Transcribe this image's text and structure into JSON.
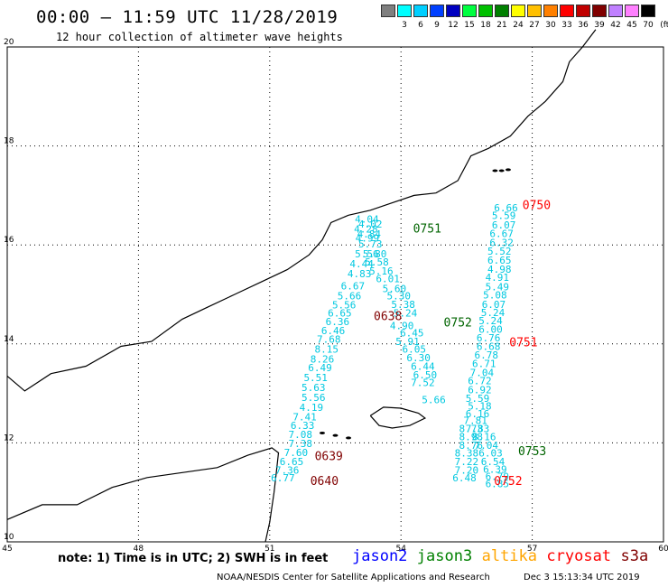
{
  "header": {
    "title": "00:00 – 11:59 UTC 11/28/2019",
    "subtitle": "12 hour collection of altimeter wave heights"
  },
  "legend": {
    "unit": "(ft)",
    "items": [
      {
        "label": "",
        "color": "#7f7f7f"
      },
      {
        "label": "3",
        "color": "#00ffff"
      },
      {
        "label": "6",
        "color": "#00cfff"
      },
      {
        "label": "9",
        "color": "#0040ff"
      },
      {
        "label": "12",
        "color": "#0000c0"
      },
      {
        "label": "15",
        "color": "#00ff40"
      },
      {
        "label": "18",
        "color": "#00c000"
      },
      {
        "label": "21",
        "color": "#008000"
      },
      {
        "label": "24",
        "color": "#ffff00"
      },
      {
        "label": "27",
        "color": "#ffc000"
      },
      {
        "label": "30",
        "color": "#ff8000"
      },
      {
        "label": "33",
        "color": "#ff0000"
      },
      {
        "label": "36",
        "color": "#c00000"
      },
      {
        "label": "39",
        "color": "#800000"
      },
      {
        "label": "42",
        "color": "#c080ff"
      },
      {
        "label": "45",
        "color": "#ff80ff"
      },
      {
        "label": "70",
        "color": "#000000"
      }
    ]
  },
  "axes": {
    "x_ticks": [
      "45",
      "48",
      "51",
      "54",
      "57",
      "60"
    ],
    "y_ticks": [
      "10",
      "12",
      "14",
      "16",
      "18",
      "20"
    ]
  },
  "tracks": [
    {
      "name": "A",
      "color": "#00c8e0",
      "points": [
        {
          "lon": 53.22,
          "lat": 16.45,
          "v": "4.04"
        },
        {
          "lon": 53.3,
          "lat": 16.35,
          "v": "4.02"
        },
        {
          "lon": 53.2,
          "lat": 16.25,
          "v": "4.28"
        },
        {
          "lon": 53.27,
          "lat": 16.15,
          "v": "4.84"
        },
        {
          "lon": 53.23,
          "lat": 16.07,
          "v": "4.99"
        },
        {
          "lon": 53.3,
          "lat": 15.95,
          "v": "5.73"
        },
        {
          "lon": 53.22,
          "lat": 15.75,
          "v": "5.56"
        },
        {
          "lon": 53.4,
          "lat": 15.75,
          "v": "5.80"
        },
        {
          "lon": 53.1,
          "lat": 15.55,
          "v": "4.44"
        },
        {
          "lon": 53.45,
          "lat": 15.58,
          "v": "5.58"
        },
        {
          "lon": 53.05,
          "lat": 15.35,
          "v": "4.83"
        },
        {
          "lon": 53.55,
          "lat": 15.4,
          "v": "5.16"
        },
        {
          "lon": 53.7,
          "lat": 15.25,
          "v": "6.01"
        },
        {
          "lon": 52.9,
          "lat": 15.1,
          "v": "6.67"
        },
        {
          "lon": 53.85,
          "lat": 15.05,
          "v": "5.60"
        },
        {
          "lon": 52.82,
          "lat": 14.9,
          "v": "5.66"
        },
        {
          "lon": 53.95,
          "lat": 14.9,
          "v": "5.30"
        },
        {
          "lon": 52.7,
          "lat": 14.72,
          "v": "5.56"
        },
        {
          "lon": 54.05,
          "lat": 14.73,
          "v": "5.38"
        },
        {
          "lon": 52.6,
          "lat": 14.55,
          "v": "6.65"
        },
        {
          "lon": 54.1,
          "lat": 14.55,
          "v": "5.24"
        },
        {
          "lon": 52.55,
          "lat": 14.38,
          "v": "6.36"
        },
        {
          "lon": 54.02,
          "lat": 14.3,
          "v": "4.90"
        },
        {
          "lon": 52.45,
          "lat": 14.2,
          "v": "6.46"
        },
        {
          "lon": 54.25,
          "lat": 14.15,
          "v": "6.45"
        },
        {
          "lon": 52.35,
          "lat": 14.02,
          "v": "7.68"
        },
        {
          "lon": 54.15,
          "lat": 13.98,
          "v": "5.91"
        },
        {
          "lon": 52.3,
          "lat": 13.82,
          "v": "8.15"
        },
        {
          "lon": 54.3,
          "lat": 13.82,
          "v": "6.05"
        },
        {
          "lon": 52.2,
          "lat": 13.62,
          "v": "8.26"
        },
        {
          "lon": 54.4,
          "lat": 13.65,
          "v": "6.30"
        },
        {
          "lon": 54.5,
          "lat": 13.48,
          "v": "6.44"
        },
        {
          "lon": 52.15,
          "lat": 13.45,
          "v": "6.49"
        },
        {
          "lon": 54.55,
          "lat": 13.3,
          "v": "6.50"
        },
        {
          "lon": 52.05,
          "lat": 13.25,
          "v": "5.51"
        },
        {
          "lon": 54.5,
          "lat": 13.15,
          "v": "7.52"
        },
        {
          "lon": 52.0,
          "lat": 13.05,
          "v": "5.63"
        },
        {
          "lon": 52.0,
          "lat": 12.85,
          "v": "5.56"
        },
        {
          "lon": 54.75,
          "lat": 12.8,
          "v": "5.66"
        },
        {
          "lon": 51.95,
          "lat": 12.65,
          "v": "4.19"
        },
        {
          "lon": 51.8,
          "lat": 12.45,
          "v": "7.41"
        },
        {
          "lon": 51.75,
          "lat": 12.28,
          "v": "6.33"
        },
        {
          "lon": 51.7,
          "lat": 12.1,
          "v": "7.08"
        },
        {
          "lon": 51.7,
          "lat": 11.92,
          "v": "7.38"
        },
        {
          "lon": 51.6,
          "lat": 11.73,
          "v": "7.60"
        },
        {
          "lon": 51.5,
          "lat": 11.55,
          "v": "6.65"
        },
        {
          "lon": 51.4,
          "lat": 11.38,
          "v": "7.36"
        },
        {
          "lon": 51.3,
          "lat": 11.22,
          "v": "6.77"
        }
      ]
    },
    {
      "name": "B",
      "color": "#00c8e0",
      "points": [
        {
          "lon": 56.4,
          "lat": 16.68,
          "v": "6.66"
        },
        {
          "lon": 56.35,
          "lat": 16.52,
          "v": "5.59"
        },
        {
          "lon": 56.35,
          "lat": 16.33,
          "v": "6.07"
        },
        {
          "lon": 56.3,
          "lat": 16.16,
          "v": "6.67"
        },
        {
          "lon": 56.3,
          "lat": 15.98,
          "v": "6.32"
        },
        {
          "lon": 56.25,
          "lat": 15.8,
          "v": "5.52"
        },
        {
          "lon": 56.25,
          "lat": 15.62,
          "v": "6.65"
        },
        {
          "lon": 56.25,
          "lat": 15.44,
          "v": "4.98"
        },
        {
          "lon": 56.2,
          "lat": 15.27,
          "v": "4.91"
        },
        {
          "lon": 56.2,
          "lat": 15.08,
          "v": "5.49"
        },
        {
          "lon": 56.15,
          "lat": 14.92,
          "v": "5.08"
        },
        {
          "lon": 56.12,
          "lat": 14.73,
          "v": "6.07"
        },
        {
          "lon": 56.1,
          "lat": 14.56,
          "v": "5.24"
        },
        {
          "lon": 56.05,
          "lat": 14.4,
          "v": "5.24"
        },
        {
          "lon": 56.05,
          "lat": 14.22,
          "v": "6.00"
        },
        {
          "lon": 56.0,
          "lat": 14.05,
          "v": "6.76"
        },
        {
          "lon": 56.0,
          "lat": 13.88,
          "v": "6.68"
        },
        {
          "lon": 55.95,
          "lat": 13.7,
          "v": "6.78"
        },
        {
          "lon": 55.9,
          "lat": 13.53,
          "v": "6.71"
        },
        {
          "lon": 55.85,
          "lat": 13.35,
          "v": "7.04"
        },
        {
          "lon": 55.8,
          "lat": 13.18,
          "v": "6.72"
        },
        {
          "lon": 55.8,
          "lat": 13.0,
          "v": "6.92"
        },
        {
          "lon": 55.75,
          "lat": 12.83,
          "v": "5.59"
        },
        {
          "lon": 55.8,
          "lat": 12.67,
          "v": "5.18"
        },
        {
          "lon": 55.75,
          "lat": 12.52,
          "v": "6.16"
        },
        {
          "lon": 55.7,
          "lat": 12.38,
          "v": "7.81"
        },
        {
          "lon": 55.6,
          "lat": 12.22,
          "v": "8.73"
        },
        {
          "lon": 55.75,
          "lat": 12.22,
          "v": "7.83"
        },
        {
          "lon": 55.6,
          "lat": 12.05,
          "v": "8.98"
        },
        {
          "lon": 55.9,
          "lat": 12.05,
          "v": "8.16"
        },
        {
          "lon": 55.6,
          "lat": 11.88,
          "v": "8.76"
        },
        {
          "lon": 55.95,
          "lat": 11.88,
          "v": "7.04"
        },
        {
          "lon": 55.5,
          "lat": 11.72,
          "v": "8.38"
        },
        {
          "lon": 56.05,
          "lat": 11.72,
          "v": "6.03"
        },
        {
          "lon": 55.5,
          "lat": 11.55,
          "v": "7.22"
        },
        {
          "lon": 56.1,
          "lat": 11.55,
          "v": "6.54"
        },
        {
          "lon": 55.5,
          "lat": 11.38,
          "v": "7.20"
        },
        {
          "lon": 56.15,
          "lat": 11.4,
          "v": "6.39"
        },
        {
          "lon": 55.45,
          "lat": 11.22,
          "v": "6.48"
        },
        {
          "lon": 56.2,
          "lat": 11.25,
          "v": "6.79"
        },
        {
          "lon": 56.2,
          "lat": 11.1,
          "v": "6.85"
        }
      ]
    }
  ],
  "time_labels": [
    {
      "text": "0750",
      "color": "#ff0000",
      "lon": 57.1,
      "lat": 16.72
    },
    {
      "text": "0751",
      "color": "#006400",
      "lon": 54.6,
      "lat": 16.25
    },
    {
      "text": "0638",
      "color": "#800000",
      "lon": 53.7,
      "lat": 14.48
    },
    {
      "text": "0752",
      "color": "#006400",
      "lon": 55.3,
      "lat": 14.35
    },
    {
      "text": "0751",
      "color": "#ff0000",
      "lon": 56.8,
      "lat": 13.95
    },
    {
      "text": "0753",
      "color": "#006400",
      "lon": 57.0,
      "lat": 11.75
    },
    {
      "text": "0639",
      "color": "#800000",
      "lon": 52.35,
      "lat": 11.65
    },
    {
      "text": "0640",
      "color": "#800000",
      "lon": 52.25,
      "lat": 11.15
    },
    {
      "text": "0752",
      "color": "#ff0000",
      "lon": 56.45,
      "lat": 11.15
    }
  ],
  "footer": {
    "note": "note: 1) Time is in UTC; 2) SWH is in feet",
    "satellites": [
      {
        "name": "jason2",
        "color": "#0000ff"
      },
      {
        "name": "jason3",
        "color": "#008000"
      },
      {
        "name": "altika",
        "color": "#ffa500"
      },
      {
        "name": "cryosat",
        "color": "#ff0000"
      },
      {
        "name": "s3a",
        "color": "#800000"
      }
    ],
    "credit": "NOAA/NESDIS Center for Satellite Applications and Research",
    "date": "Dec  3 15:13:34 UTC 2019"
  }
}
